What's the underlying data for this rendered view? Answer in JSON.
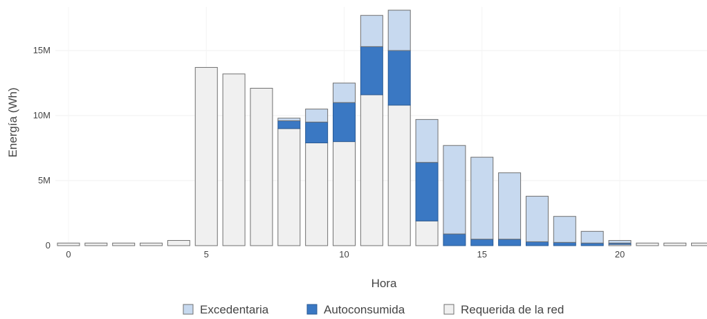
{
  "chart_data": {
    "type": "bar",
    "stacked": true,
    "xlabel": "Hora",
    "ylabel": "Energía (Wh)",
    "categories": [
      0,
      1,
      2,
      3,
      4,
      5,
      6,
      7,
      8,
      9,
      10,
      11,
      12,
      13,
      14,
      15,
      16,
      17,
      18,
      19,
      20,
      21,
      22,
      23
    ],
    "x_ticks": [
      0,
      5,
      10,
      15,
      20
    ],
    "y_ticks": [
      0,
      5000000,
      10000000,
      15000000
    ],
    "y_tick_labels": [
      "0",
      "5M",
      "10M",
      "15M"
    ],
    "ylim": [
      0,
      18500000
    ],
    "grid": true,
    "legend_position": "bottom",
    "series": [
      {
        "name": "Requerida de la red",
        "color": "#f0f0f0",
        "values": [
          200000,
          200000,
          200000,
          200000,
          400000,
          13700000,
          13200000,
          12100000,
          9000000,
          7900000,
          8000000,
          11600000,
          10800000,
          1900000,
          0,
          0,
          0,
          0,
          0,
          0,
          100000,
          200000,
          200000,
          200000
        ]
      },
      {
        "name": "Autoconsumida",
        "color": "#3a78c3",
        "values": [
          0,
          0,
          0,
          0,
          0,
          0,
          0,
          0,
          600000,
          1600000,
          3000000,
          3700000,
          4200000,
          4500000,
          900000,
          500000,
          500000,
          300000,
          250000,
          200000,
          100000,
          0,
          0,
          0
        ]
      },
      {
        "name": "Excedentaria",
        "color": "#c7d9ef",
        "values": [
          0,
          0,
          0,
          0,
          0,
          0,
          0,
          0,
          200000,
          1000000,
          1500000,
          2400000,
          3100000,
          3300000,
          6800000,
          6300000,
          5100000,
          3500000,
          2000000,
          900000,
          200000,
          0,
          0,
          0
        ]
      }
    ],
    "legend": [
      "Excedentaria",
      "Autoconsumida",
      "Requerida de la red"
    ]
  }
}
